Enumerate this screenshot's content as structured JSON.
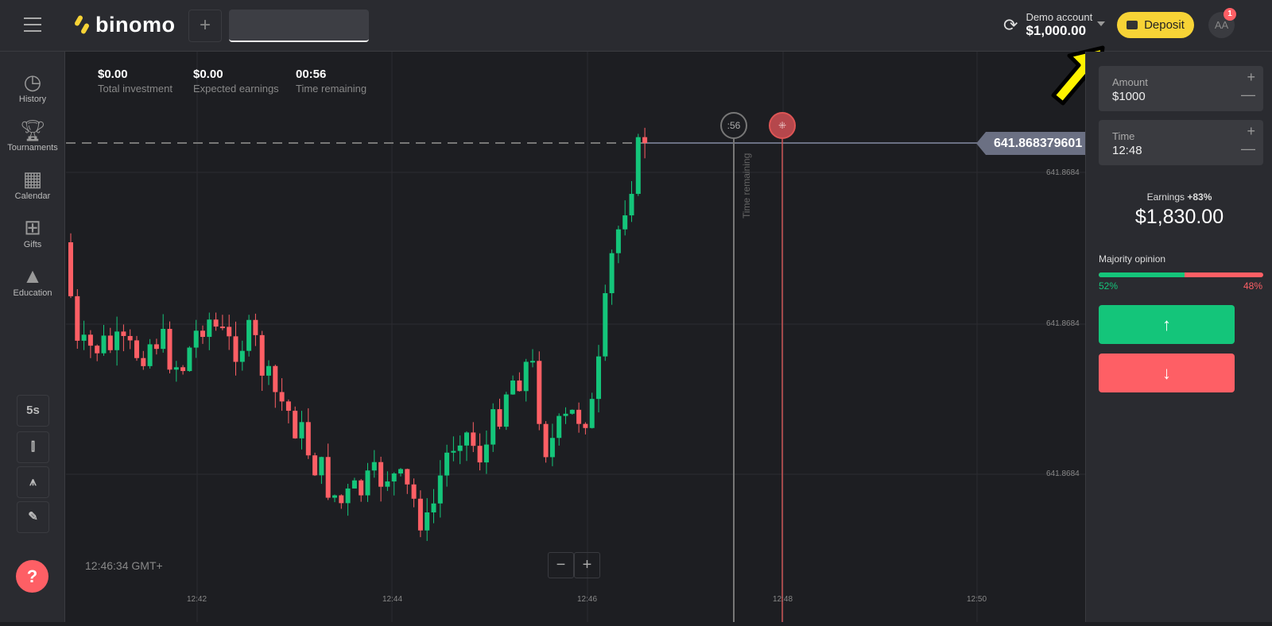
{
  "header": {
    "logo": "binomo",
    "add_tab": "+",
    "account_label": "Demo account",
    "account_balance": "$1,000.00",
    "deposit": "Deposit",
    "avatar": "AA",
    "notifications": "1"
  },
  "sidebar": {
    "items": [
      {
        "label": "History",
        "icon": "clock-icon"
      },
      {
        "label": "Tournaments",
        "icon": "trophy-icon"
      },
      {
        "label": "Calendar",
        "icon": "calendar-icon"
      },
      {
        "label": "Gifts",
        "icon": "gift-icon"
      },
      {
        "label": "Education",
        "icon": "graduation-cap-icon"
      }
    ],
    "tools": {
      "timeframe": "5s"
    },
    "help": "?"
  },
  "stats": [
    {
      "value": "$0.00",
      "label": "Total investment"
    },
    {
      "value": "$0.00",
      "label": "Expected earnings"
    },
    {
      "value": "00:56",
      "label": "Time remaining"
    }
  ],
  "chart": {
    "current_price": "641.868379601",
    "price_ticks": [
      "641.8684",
      "641.8684",
      "641.8684"
    ],
    "time_ticks": [
      "12:42",
      "12:44",
      "12:46",
      "12:48",
      "12:50"
    ],
    "timer": ":56",
    "time_remaining_label": "Time remaining",
    "clock": "12:46:34 GMT+",
    "zoom_out": "−",
    "zoom_in": "+",
    "colors": {
      "up": "#14c57a",
      "down": "#fe5f65"
    }
  },
  "panel": {
    "amount_label": "Amount",
    "amount": "$1000",
    "time_label": "Time",
    "time": "12:48",
    "plus": "+",
    "minus": "—",
    "earnings_label": "Earnings",
    "earnings_pct": "+83%",
    "earnings": "$1,830.00",
    "majority_label": "Majority opinion",
    "up_pct": "52%",
    "down_pct": "48%",
    "up_value": 52,
    "up_icon": "↑",
    "down_icon": "↓"
  }
}
